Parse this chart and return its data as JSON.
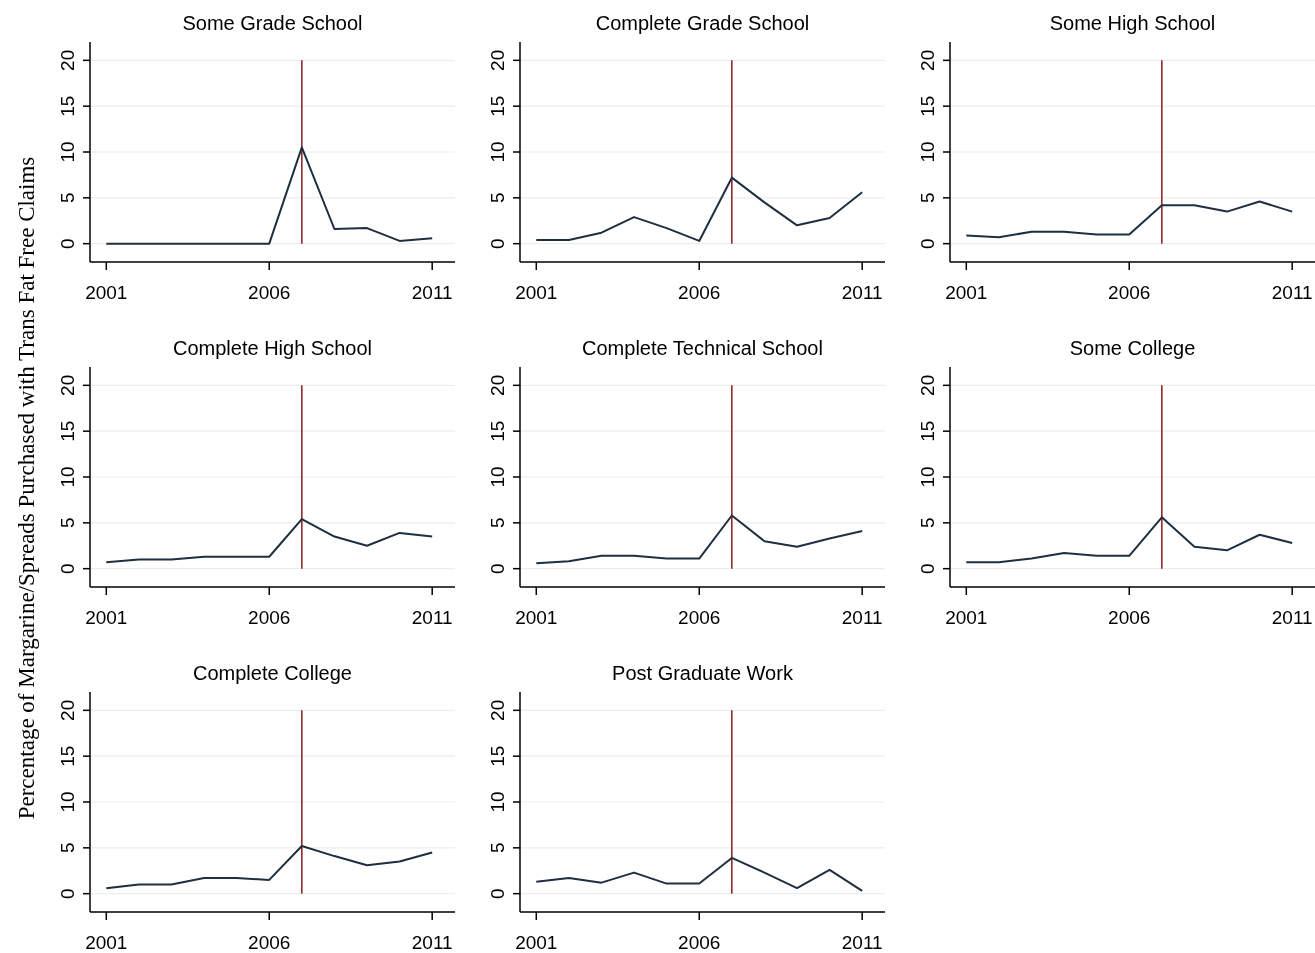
{
  "chart_data": [
    {
      "type": "line",
      "title": "Some Grade School",
      "ylabel": "Percentage of Margarine/Spreads Purchased with Trans Fat Free Claims",
      "x": [
        2001,
        2002,
        2003,
        2004,
        2005,
        2006,
        2007,
        2008,
        2009,
        2010,
        2011
      ],
      "series": [
        {
          "color": "#1f2f3f",
          "values": [
            0,
            0,
            0,
            0,
            0,
            0,
            10.5,
            1.6,
            1.7,
            0.3,
            0.6
          ]
        }
      ],
      "xlim": [
        2000.5,
        2011.7
      ],
      "xticks": [
        2001,
        2006,
        2011
      ],
      "ylim": [
        -2,
        22
      ],
      "yticks": [
        0,
        5,
        10,
        15,
        20
      ],
      "grid": "y",
      "ref_lines": [
        {
          "axis": "x",
          "value": 2007,
          "color": "#8b1a1a"
        }
      ],
      "marker": "none",
      "line_style": "solid"
    },
    {
      "type": "line",
      "title": "Complete Grade School",
      "x": [
        2001,
        2002,
        2003,
        2004,
        2005,
        2006,
        2007,
        2008,
        2009,
        2010,
        2011
      ],
      "series": [
        {
          "color": "#1f2f3f",
          "values": [
            0.4,
            0.4,
            1.2,
            2.9,
            1.7,
            0.3,
            7.2,
            4.5,
            2.0,
            2.8,
            5.6
          ]
        }
      ],
      "xlim": [
        2000.5,
        2011.7
      ],
      "xticks": [
        2001,
        2006,
        2011
      ],
      "ylim": [
        -2,
        22
      ],
      "yticks": [
        0,
        5,
        10,
        15,
        20
      ],
      "grid": "y",
      "ref_lines": [
        {
          "axis": "x",
          "value": 2007,
          "color": "#8b1a1a"
        }
      ],
      "marker": "none",
      "line_style": "solid"
    },
    {
      "type": "line",
      "title": "Some High School",
      "x": [
        2001,
        2002,
        2003,
        2004,
        2005,
        2006,
        2007,
        2008,
        2009,
        2010,
        2011
      ],
      "series": [
        {
          "color": "#1f2f3f",
          "values": [
            0.9,
            0.7,
            1.3,
            1.3,
            1.0,
            1.0,
            4.2,
            4.2,
            3.5,
            4.6,
            3.5
          ]
        }
      ],
      "xlim": [
        2000.5,
        2011.7
      ],
      "xticks": [
        2001,
        2006,
        2011
      ],
      "ylim": [
        -2,
        22
      ],
      "yticks": [
        0,
        5,
        10,
        15,
        20
      ],
      "grid": "y",
      "ref_lines": [
        {
          "axis": "x",
          "value": 2007,
          "color": "#8b1a1a"
        }
      ],
      "marker": "none",
      "line_style": "solid"
    },
    {
      "type": "line",
      "title": "Complete High School",
      "x": [
        2001,
        2002,
        2003,
        2004,
        2005,
        2006,
        2007,
        2008,
        2009,
        2010,
        2011
      ],
      "series": [
        {
          "color": "#1f2f3f",
          "values": [
            0.7,
            1.0,
            1.0,
            1.3,
            1.3,
            1.3,
            5.4,
            3.5,
            2.5,
            3.9,
            3.5
          ]
        }
      ],
      "xlim": [
        2000.5,
        2011.7
      ],
      "xticks": [
        2001,
        2006,
        2011
      ],
      "ylim": [
        -2,
        22
      ],
      "yticks": [
        0,
        5,
        10,
        15,
        20
      ],
      "grid": "y",
      "ref_lines": [
        {
          "axis": "x",
          "value": 2007,
          "color": "#8b1a1a"
        }
      ],
      "marker": "none",
      "line_style": "solid"
    },
    {
      "type": "line",
      "title": "Complete Technical School",
      "x": [
        2001,
        2002,
        2003,
        2004,
        2005,
        2006,
        2007,
        2008,
        2009,
        2010,
        2011
      ],
      "series": [
        {
          "color": "#1f2f3f",
          "values": [
            0.6,
            0.8,
            1.4,
            1.4,
            1.1,
            1.1,
            5.8,
            3.0,
            2.4,
            3.3,
            4.1
          ]
        }
      ],
      "xlim": [
        2000.5,
        2011.7
      ],
      "xticks": [
        2001,
        2006,
        2011
      ],
      "ylim": [
        -2,
        22
      ],
      "yticks": [
        0,
        5,
        10,
        15,
        20
      ],
      "grid": "y",
      "ref_lines": [
        {
          "axis": "x",
          "value": 2007,
          "color": "#8b1a1a"
        }
      ],
      "marker": "none",
      "line_style": "solid"
    },
    {
      "type": "line",
      "title": "Some College",
      "x": [
        2001,
        2002,
        2003,
        2004,
        2005,
        2006,
        2007,
        2008,
        2009,
        2010,
        2011
      ],
      "series": [
        {
          "color": "#1f2f3f",
          "values": [
            0.7,
            0.7,
            1.1,
            1.7,
            1.4,
            1.4,
            5.6,
            2.4,
            2.0,
            3.7,
            2.8
          ]
        }
      ],
      "xlim": [
        2000.5,
        2011.7
      ],
      "xticks": [
        2001,
        2006,
        2011
      ],
      "ylim": [
        -2,
        22
      ],
      "yticks": [
        0,
        5,
        10,
        15,
        20
      ],
      "grid": "y",
      "ref_lines": [
        {
          "axis": "x",
          "value": 2007,
          "color": "#8b1a1a"
        }
      ],
      "marker": "none",
      "line_style": "solid"
    },
    {
      "type": "line",
      "title": "Complete College",
      "x": [
        2001,
        2002,
        2003,
        2004,
        2005,
        2006,
        2007,
        2008,
        2009,
        2010,
        2011
      ],
      "series": [
        {
          "color": "#1f2f3f",
          "values": [
            0.6,
            1.0,
            1.0,
            1.7,
            1.7,
            1.5,
            5.2,
            4.1,
            3.1,
            3.5,
            4.5
          ]
        }
      ],
      "xlim": [
        2000.5,
        2011.7
      ],
      "xticks": [
        2001,
        2006,
        2011
      ],
      "ylim": [
        -2,
        22
      ],
      "yticks": [
        0,
        5,
        10,
        15,
        20
      ],
      "grid": "y",
      "ref_lines": [
        {
          "axis": "x",
          "value": 2007,
          "color": "#8b1a1a"
        }
      ],
      "marker": "none",
      "line_style": "solid"
    },
    {
      "type": "line",
      "title": "Post Graduate Work",
      "x": [
        2001,
        2002,
        2003,
        2004,
        2005,
        2006,
        2007,
        2008,
        2009,
        2010,
        2011
      ],
      "series": [
        {
          "color": "#1f2f3f",
          "values": [
            1.3,
            1.7,
            1.2,
            2.3,
            1.1,
            1.1,
            3.9,
            2.3,
            0.6,
            2.6,
            0.3
          ]
        }
      ],
      "xlim": [
        2000.5,
        2011.7
      ],
      "xticks": [
        2001,
        2006,
        2011
      ],
      "ylim": [
        -2,
        22
      ],
      "yticks": [
        0,
        5,
        10,
        15,
        20
      ],
      "grid": "y",
      "ref_lines": [
        {
          "axis": "x",
          "value": 2007,
          "color": "#8b1a1a"
        }
      ],
      "marker": "none",
      "line_style": "solid"
    }
  ]
}
